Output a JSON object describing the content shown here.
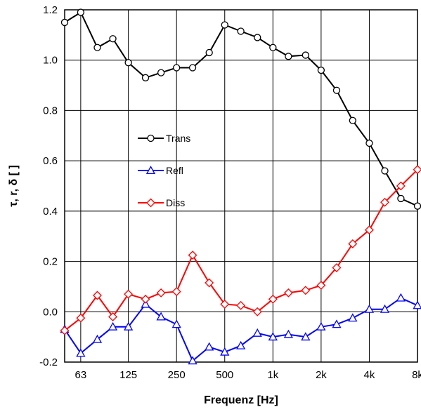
{
  "chart_data": {
    "type": "line",
    "xlabel": "Frequenz [Hz]",
    "ylabel": "τ, r, δ [ ]",
    "x_scale": "log",
    "xlim": [
      50,
      8000
    ],
    "ylim": [
      -0.2,
      1.2
    ],
    "grid": true,
    "legend_position": "middle-left",
    "x_ticks": [
      {
        "value": 63,
        "label": "63"
      },
      {
        "value": 125,
        "label": "125"
      },
      {
        "value": 250,
        "label": "250"
      },
      {
        "value": 500,
        "label": "500"
      },
      {
        "value": 1000,
        "label": "1k"
      },
      {
        "value": 2000,
        "label": "2k"
      },
      {
        "value": 4000,
        "label": "4k"
      },
      {
        "value": 8000,
        "label": "8k"
      }
    ],
    "y_ticks": [
      {
        "value": -0.2,
        "label": "-0.2"
      },
      {
        "value": 0.0,
        "label": "0.0"
      },
      {
        "value": 0.2,
        "label": "0.2"
      },
      {
        "value": 0.4,
        "label": "0.4"
      },
      {
        "value": 0.6,
        "label": "0.6"
      },
      {
        "value": 0.8,
        "label": "0.8"
      },
      {
        "value": 1.0,
        "label": "1.0"
      },
      {
        "value": 1.2,
        "label": "1.2"
      }
    ],
    "x": [
      50,
      63,
      80,
      100,
      125,
      160,
      200,
      250,
      315,
      400,
      500,
      630,
      800,
      1000,
      1250,
      1600,
      2000,
      2500,
      3150,
      4000,
      5000,
      6300,
      8000
    ],
    "series": [
      {
        "name": "Trans",
        "color": "#000000",
        "marker": "circle",
        "values": [
          1.15,
          1.19,
          1.05,
          1.085,
          0.99,
          0.93,
          0.95,
          0.97,
          0.97,
          1.03,
          1.14,
          1.115,
          1.09,
          1.05,
          1.015,
          1.02,
          0.96,
          0.88,
          0.76,
          0.67,
          0.56,
          0.45,
          0.42
        ]
      },
      {
        "name": "Refl",
        "color": "#0000ff",
        "marker": "triangle",
        "values": [
          -0.07,
          -0.165,
          -0.11,
          -0.06,
          -0.06,
          0.03,
          -0.02,
          -0.05,
          -0.195,
          -0.14,
          -0.16,
          -0.135,
          -0.085,
          -0.1,
          -0.09,
          -0.1,
          -0.06,
          -0.05,
          -0.025,
          0.01,
          0.01,
          0.055,
          0.025
        ]
      },
      {
        "name": "Diss",
        "color": "#ff0000",
        "marker": "diamond",
        "values": [
          -0.075,
          -0.025,
          0.065,
          -0.02,
          0.07,
          0.05,
          0.075,
          0.08,
          0.225,
          0.115,
          0.03,
          0.025,
          0.0,
          0.05,
          0.075,
          0.085,
          0.105,
          0.175,
          0.27,
          0.325,
          0.435,
          0.5,
          0.565
        ]
      }
    ]
  }
}
